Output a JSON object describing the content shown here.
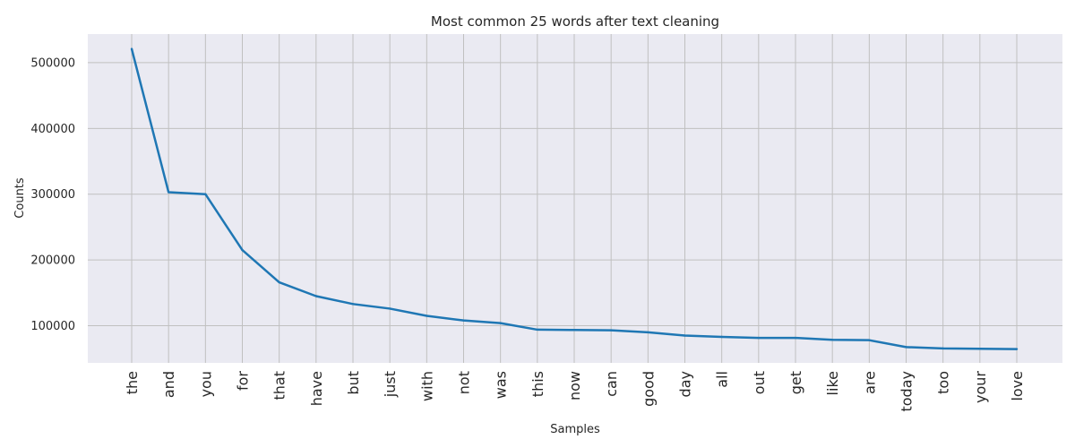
{
  "chart_data": {
    "type": "line",
    "title": "Most common 25 words after text cleaning",
    "xlabel": "Samples",
    "ylabel": "Counts",
    "categories": [
      "the",
      "and",
      "you",
      "for",
      "that",
      "have",
      "but",
      "just",
      "with",
      "not",
      "was",
      "this",
      "now",
      "can",
      "good",
      "day",
      "all",
      "out",
      "get",
      "like",
      "are",
      "today",
      "too",
      "your",
      "love"
    ],
    "values": [
      521000,
      303000,
      300000,
      215000,
      166000,
      145000,
      133000,
      126000,
      115000,
      108000,
      104000,
      94000,
      93500,
      93000,
      90000,
      85000,
      83000,
      81500,
      81500,
      78500,
      78000,
      67500,
      65500,
      65000,
      64500
    ],
    "yticks": [
      100000,
      200000,
      300000,
      400000,
      500000
    ],
    "ytick_labels": [
      "100000",
      "200000",
      "300000",
      "400000",
      "500000"
    ],
    "ylim": [
      43500,
      543500
    ],
    "grid": true,
    "colors": {
      "background": "#eaeaf2",
      "grid": "#c0c0c0",
      "line": "#1f77b4"
    }
  }
}
